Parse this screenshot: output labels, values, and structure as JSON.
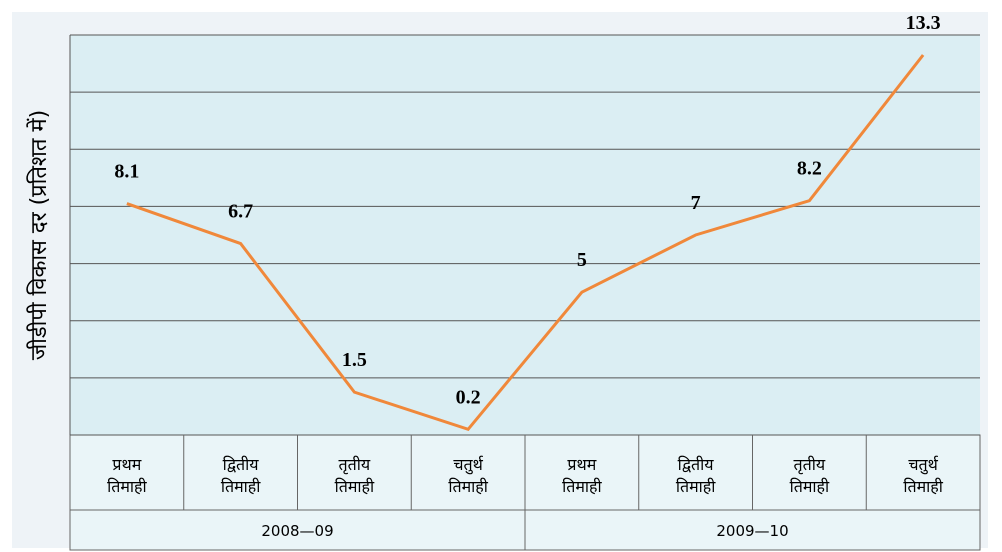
{
  "chart_data": {
    "type": "line",
    "y_label": "जीडीपी विकास दर (प्रतिशत में)",
    "categories": [
      "प्रथम तिमाही",
      "द्वितीय तिमाही",
      "तृतीय तिमाही",
      "चतुर्थ तिमाही",
      "प्रथम तिमाही",
      "द्वितीय तिमाही",
      "तृतीय तिमाही",
      "चतुर्थ तिमाही"
    ],
    "x_groups": [
      "2008—09",
      "2009—10"
    ],
    "series": [
      {
        "color": "#f0883a",
        "values": [
          8.1,
          6.7,
          1.5,
          0.2,
          5,
          7,
          8.2,
          13.3
        ]
      }
    ],
    "ylim": [
      0,
      14
    ],
    "yticks": [
      0,
      2,
      4,
      6,
      8,
      10,
      12,
      14
    ],
    "grid": true
  }
}
